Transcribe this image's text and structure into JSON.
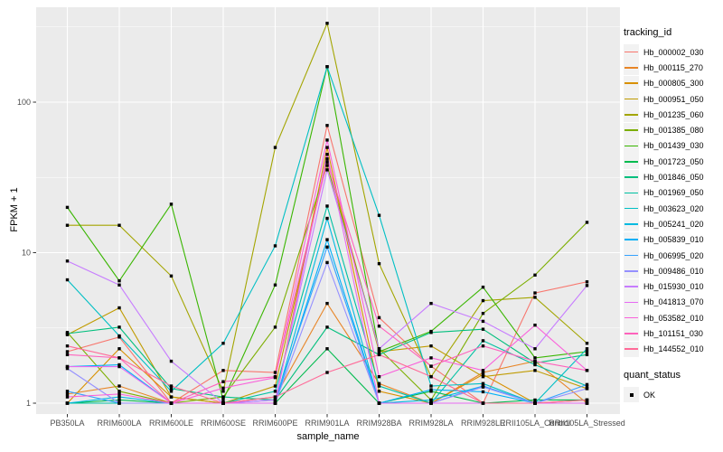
{
  "chart_data": {
    "type": "line",
    "title": "",
    "xlabel": "sample_name",
    "ylabel": "FPKM + 1",
    "y_scale": "log10",
    "y_ticks": [
      1,
      10,
      100
    ],
    "ylim": [
      0.85,
      430
    ],
    "grid": true,
    "legend_position": "right",
    "x_categories": [
      "PB350LA",
      "RRIM600LA",
      "RRIM600LE",
      "RRIM600SE",
      "RRIM600PE",
      "RRIM901LA",
      "RRIM928BA",
      "RRIM928LA",
      "RRIM928LE",
      "RRII105LA_Control",
      "RRII105LA_Stressed"
    ],
    "series": [
      {
        "name": "Hb_000002_030",
        "color": "#F8766D",
        "values": [
          2.2,
          2.75,
          1.0,
          1.65,
          1.6,
          70,
          3.7,
          1.76,
          1.0,
          5.4,
          6.4
        ]
      },
      {
        "name": "Hb_000115_270",
        "color": "#E88526",
        "values": [
          1.15,
          1.3,
          1.0,
          1.0,
          1.1,
          4.6,
          1.35,
          1.0,
          1.6,
          1.9,
          1.0
        ]
      },
      {
        "name": "Hb_000805_300",
        "color": "#D89000",
        "values": [
          1.0,
          2.3,
          1.1,
          1.0,
          1.0,
          50,
          1.2,
          1.0,
          1.55,
          1.0,
          1.05
        ]
      },
      {
        "name": "Hb_000951_050",
        "color": "#C09B00",
        "values": [
          2.85,
          4.3,
          1.1,
          1.0,
          1.3,
          42,
          2.2,
          2.4,
          1.5,
          1.65,
          1.25
        ]
      },
      {
        "name": "Hb_001235_060",
        "color": "#A3A500",
        "values": [
          15.2,
          15.2,
          7.0,
          1.2,
          50,
          334,
          8.45,
          1.5,
          4.8,
          5.05,
          2.5
        ]
      },
      {
        "name": "Hb_001385_080",
        "color": "#7CAE00",
        "values": [
          2.95,
          1.2,
          1.0,
          1.1,
          3.2,
          38,
          2.3,
          1.05,
          3.95,
          7.1,
          15.9
        ]
      },
      {
        "name": "Hb_001439_030",
        "color": "#39B600",
        "values": [
          20,
          6.5,
          21,
          1.05,
          6.1,
          172,
          2.2,
          3.0,
          5.9,
          2.0,
          2.2
        ]
      },
      {
        "name": "Hb_001723_050",
        "color": "#00BB4E",
        "values": [
          1.0,
          1.05,
          1.0,
          1.0,
          1.0,
          2.3,
          1.0,
          1.2,
          1.0,
          1.05,
          1.05
        ]
      },
      {
        "name": "Hb_001846_050",
        "color": "#00BF7D",
        "values": [
          2.9,
          3.2,
          1.25,
          1.1,
          1.05,
          3.2,
          2.1,
          2.95,
          3.1,
          1.85,
          2.1
        ]
      },
      {
        "name": "Hb_001969_050",
        "color": "#00C1A3",
        "values": [
          1.0,
          1.0,
          1.0,
          1.0,
          1.2,
          20.4,
          1.3,
          1.0,
          2.6,
          1.8,
          1.3
        ]
      },
      {
        "name": "Hb_003623_020",
        "color": "#00BFC4",
        "values": [
          6.6,
          2.8,
          1.2,
          2.5,
          11.1,
          172,
          17.7,
          1.3,
          1.35,
          1.0,
          2.3
        ]
      },
      {
        "name": "Hb_005241_020",
        "color": "#00BAE0",
        "values": [
          1.0,
          1.1,
          1.0,
          1.0,
          1.0,
          16.9,
          1.0,
          1.05,
          1.3,
          1.0,
          1.0
        ]
      },
      {
        "name": "Hb_005839_010",
        "color": "#00B0F6",
        "values": [
          1.75,
          1.8,
          1.0,
          1.0,
          1.0,
          12.2,
          1.0,
          1.23,
          1.19,
          1.0,
          1.0
        ]
      },
      {
        "name": "Hb_006995_020",
        "color": "#35A2FF",
        "values": [
          1.2,
          1.0,
          1.0,
          1.0,
          1.05,
          10.9,
          1.0,
          1.0,
          1.3,
          1.0,
          1.33
        ]
      },
      {
        "name": "Hb_009486_010",
        "color": "#9590FF",
        "values": [
          1.7,
          1.0,
          1.0,
          1.0,
          1.0,
          8.6,
          1.0,
          1.0,
          1.28,
          1.0,
          1.25
        ]
      },
      {
        "name": "Hb_015930_010",
        "color": "#C77CFF",
        "values": [
          8.8,
          6.1,
          1.9,
          1.0,
          1.05,
          35.5,
          2.3,
          4.6,
          3.5,
          2.3,
          6.05
        ]
      },
      {
        "name": "Hb_041813_070",
        "color": "#E76BF3",
        "values": [
          1.75,
          1.75,
          1.0,
          1.0,
          1.0,
          45,
          1.0,
          1.0,
          1.0,
          1.0,
          1.0
        ]
      },
      {
        "name": "Hb_053582_010",
        "color": "#FA62DB",
        "values": [
          1.1,
          1.15,
          1.0,
          1.26,
          1.48,
          56,
          1.5,
          2.0,
          1.65,
          3.3,
          1.65
        ]
      },
      {
        "name": "Hb_101151_030",
        "color": "#FF62BC",
        "values": [
          2.1,
          2.0,
          1.0,
          1.39,
          1.5,
          40,
          3.25,
          1.76,
          2.4,
          1.9,
          1.65
        ]
      },
      {
        "name": "Hb_144552_010",
        "color": "#FF6A98",
        "values": [
          2.4,
          2.0,
          1.3,
          1.0,
          1.1,
          1.6,
          2.1,
          1.5,
          1.0,
          1.0,
          1.05
        ]
      }
    ],
    "point_marker": {
      "shape": "square",
      "color": "#000000"
    }
  },
  "legend": {
    "tracking_title": "tracking_id",
    "quant_title": "quant_status",
    "quant_ok_label": "OK"
  },
  "colors": {
    "panel_bg": "#EBEBEB",
    "grid": "#FFFFFF",
    "tick_mark": "#333333",
    "tick_text": "#4D4D4D",
    "legend_key_bg": "#F2F2F2"
  }
}
